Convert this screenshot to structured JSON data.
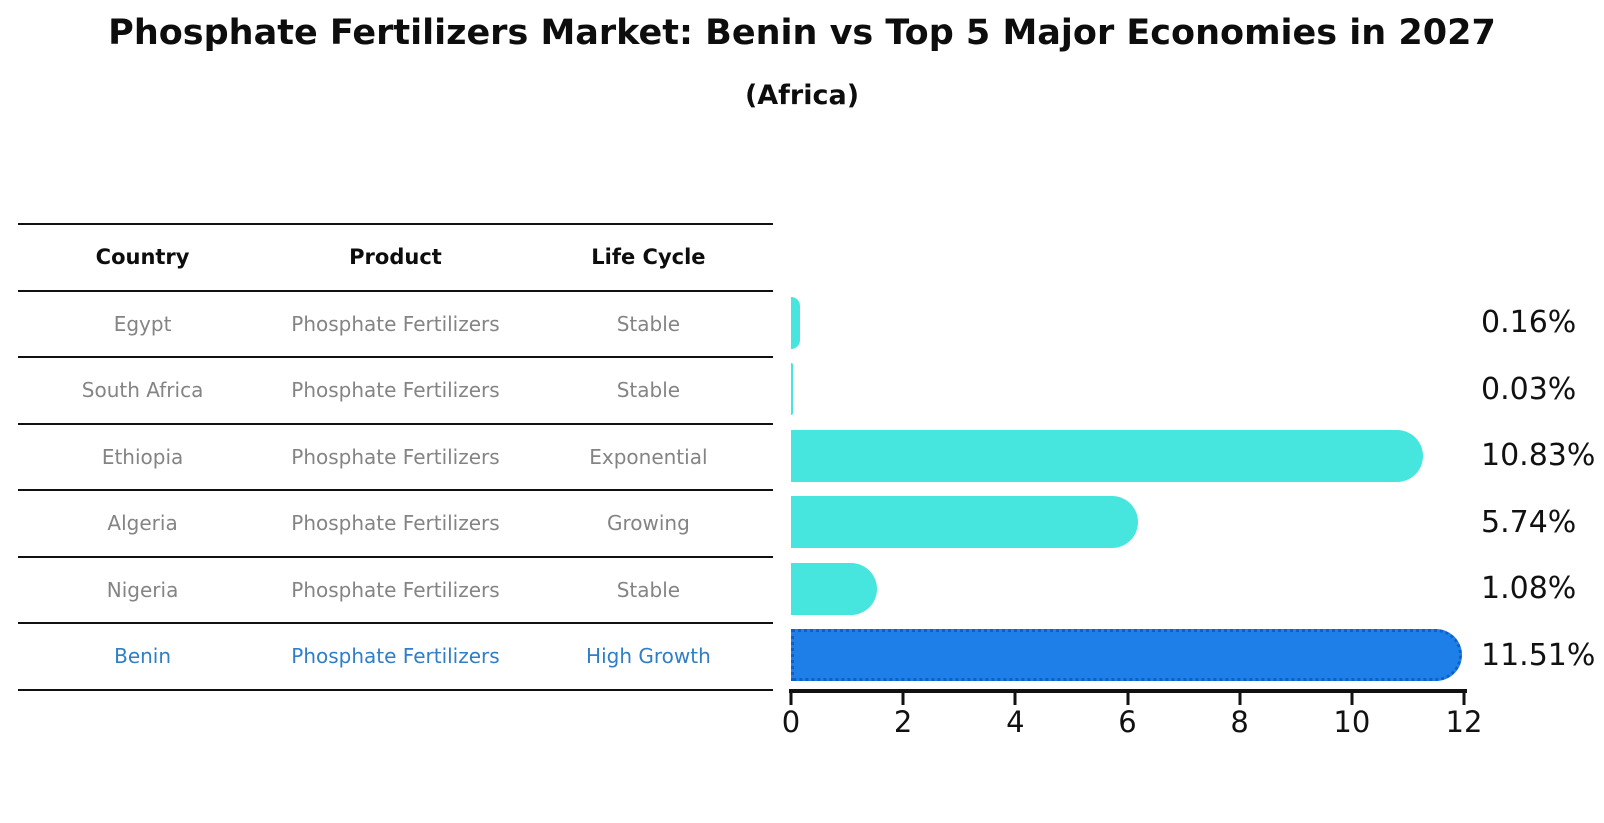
{
  "title": "Phosphate Fertilizers Market: Benin vs Top 5 Major Economies in 2027",
  "subtitle": "(Africa)",
  "table": {
    "columns": [
      "Country",
      "Product",
      "Life Cycle"
    ],
    "rows": [
      {
        "country": "Egypt",
        "product": "Phosphate Fertilizers",
        "life_cycle": "Stable",
        "value_label": "0.16%",
        "highlight": false
      },
      {
        "country": "South Africa",
        "product": "Phosphate Fertilizers",
        "life_cycle": "Stable",
        "value_label": "0.03%",
        "highlight": false
      },
      {
        "country": "Ethiopia",
        "product": "Phosphate Fertilizers",
        "life_cycle": "Exponential",
        "value_label": "10.83%",
        "highlight": false
      },
      {
        "country": "Algeria",
        "product": "Phosphate Fertilizers",
        "life_cycle": "Growing",
        "value_label": "5.74%",
        "highlight": false
      },
      {
        "country": "Nigeria",
        "product": "Phosphate Fertilizers",
        "life_cycle": "Stable",
        "value_label": "1.08%",
        "highlight": false
      },
      {
        "country": "Benin",
        "product": "Phosphate Fertilizers",
        "life_cycle": "High Growth",
        "value_label": "11.51%",
        "highlight": true
      }
    ]
  },
  "chart_data": {
    "type": "bar",
    "orientation": "horizontal",
    "title": "Phosphate Fertilizers Market: Benin vs Top 5 Major Economies in 2027 (Africa)",
    "categories": [
      "Egypt",
      "South Africa",
      "Ethiopia",
      "Algeria",
      "Nigeria",
      "Benin"
    ],
    "values": [
      0.16,
      0.03,
      10.83,
      5.74,
      1.08,
      11.51
    ],
    "value_labels": [
      "0.16%",
      "0.03%",
      "10.83%",
      "5.74%",
      "1.08%",
      "11.51%"
    ],
    "xlabel": "",
    "ylabel": "",
    "xlim": [
      0,
      12
    ],
    "x_ticks": [
      0,
      2,
      4,
      6,
      8,
      10,
      12
    ],
    "grid": false,
    "legend": false,
    "bar_color": "#46e5de",
    "highlight_color": "#1e7fe8",
    "highlight_border_color": "#0f5fc8",
    "highlight_index": 5
  },
  "colors": {
    "text_primary": "#0d0d0d",
    "text_muted": "#848484",
    "text_highlight": "#2e7ec8",
    "axis": "#111111",
    "background": "#ffffff"
  }
}
